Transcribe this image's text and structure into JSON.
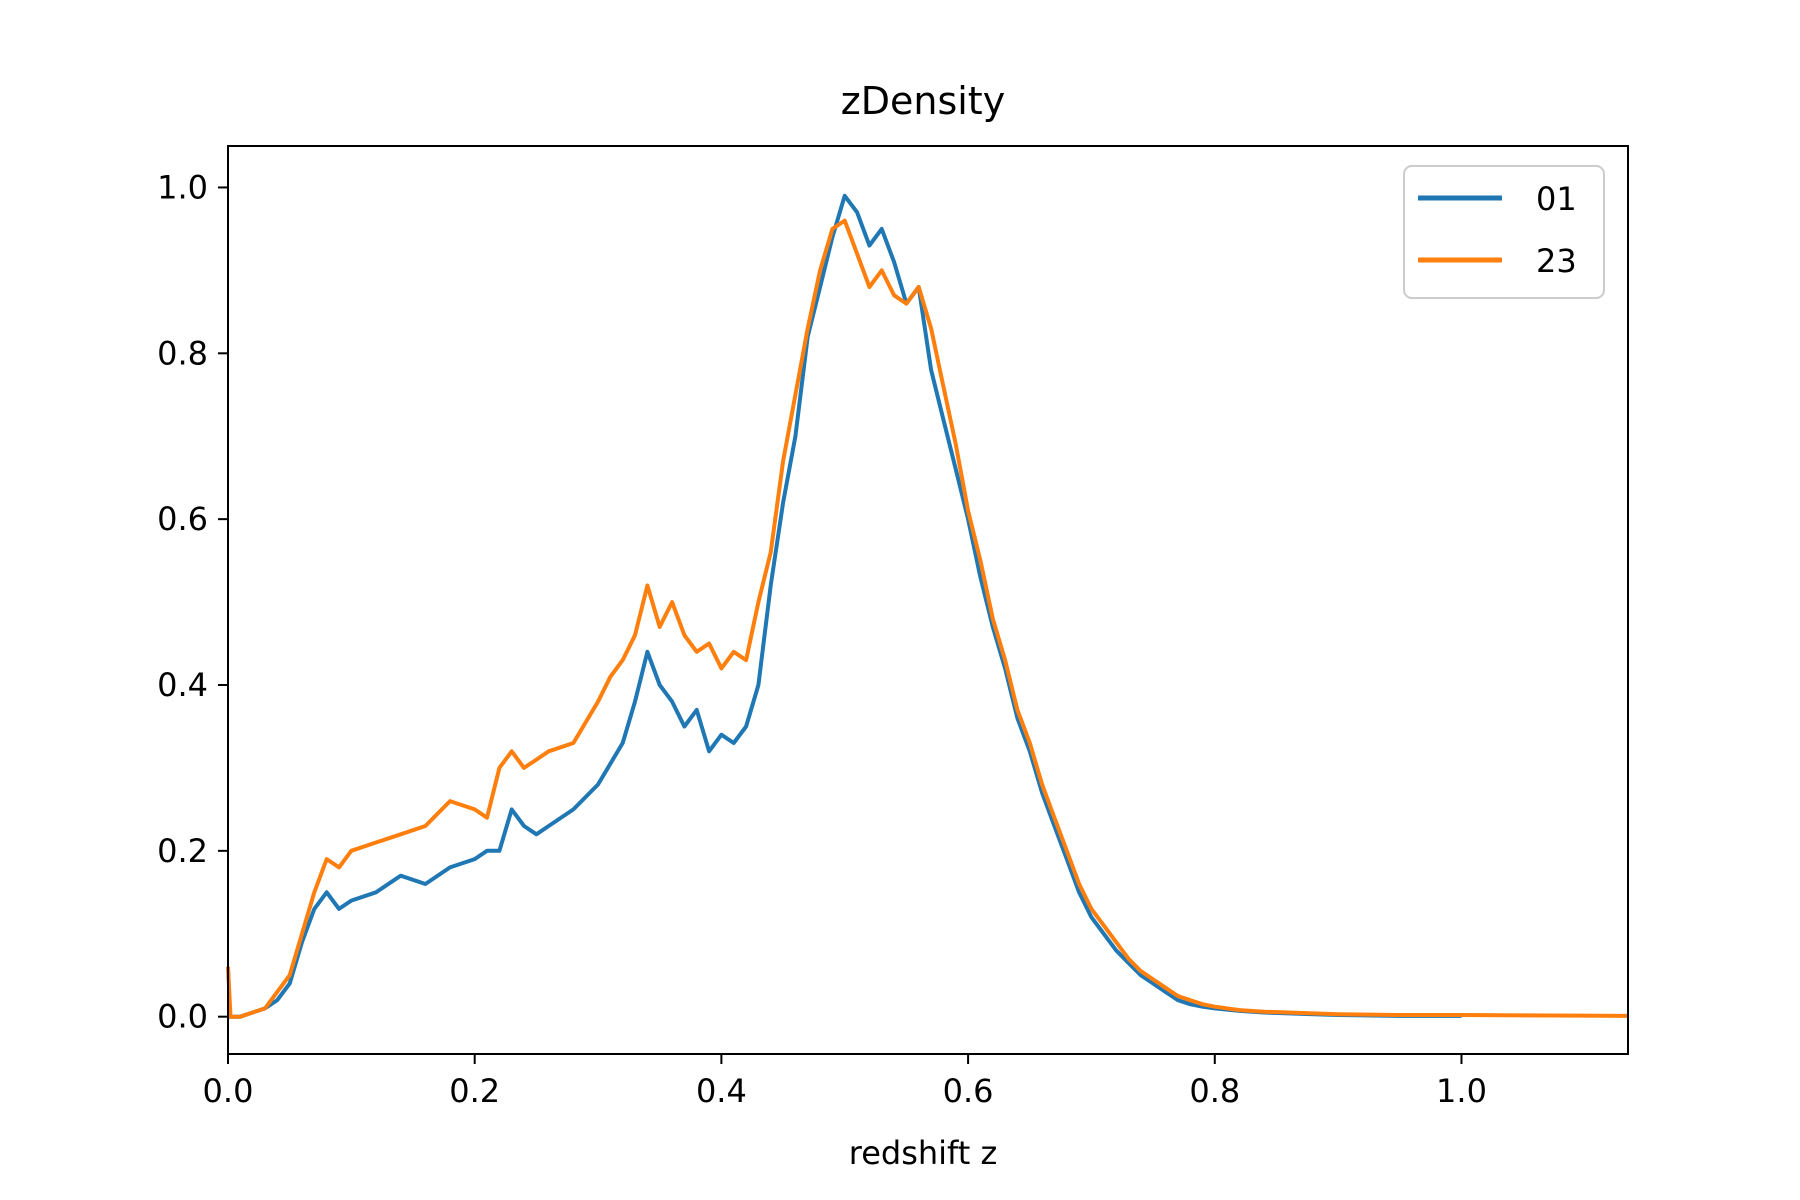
{
  "chart_data": {
    "type": "line",
    "title": "zDensity",
    "xlabel": "redshift z",
    "ylabel": "",
    "xlim": [
      0.0,
      1.135
    ],
    "ylim": [
      -0.045,
      1.05
    ],
    "x_ticks": [
      0.0,
      0.2,
      0.4,
      0.6,
      0.8,
      1.0
    ],
    "x_tick_labels": [
      "0.0",
      "0.2",
      "0.4",
      "0.6",
      "0.8",
      "1.0"
    ],
    "y_ticks": [
      0.0,
      0.2,
      0.4,
      0.6,
      0.8,
      1.0
    ],
    "y_tick_labels": [
      "0.0",
      "0.2",
      "0.4",
      "0.6",
      "0.8",
      "1.0"
    ],
    "grid": false,
    "legend_position": "top-right",
    "series": [
      {
        "name": "01",
        "color": "#1f77b4",
        "x": [
          0.0,
          0.01,
          0.02,
          0.03,
          0.04,
          0.05,
          0.06,
          0.07,
          0.08,
          0.09,
          0.1,
          0.12,
          0.14,
          0.16,
          0.18,
          0.2,
          0.21,
          0.22,
          0.23,
          0.24,
          0.25,
          0.26,
          0.28,
          0.3,
          0.32,
          0.33,
          0.34,
          0.35,
          0.36,
          0.37,
          0.38,
          0.39,
          0.4,
          0.41,
          0.42,
          0.43,
          0.44,
          0.45,
          0.46,
          0.47,
          0.48,
          0.49,
          0.5,
          0.51,
          0.52,
          0.53,
          0.54,
          0.55,
          0.56,
          0.57,
          0.58,
          0.59,
          0.6,
          0.61,
          0.62,
          0.63,
          0.64,
          0.65,
          0.66,
          0.67,
          0.68,
          0.69,
          0.7,
          0.71,
          0.72,
          0.73,
          0.74,
          0.75,
          0.76,
          0.77,
          0.78,
          0.79,
          0.8,
          0.82,
          0.84,
          0.86,
          0.88,
          0.9,
          0.95,
          1.0
        ],
        "y": [
          0.0,
          0.0,
          0.005,
          0.01,
          0.02,
          0.04,
          0.09,
          0.13,
          0.15,
          0.13,
          0.14,
          0.15,
          0.17,
          0.16,
          0.18,
          0.19,
          0.2,
          0.2,
          0.25,
          0.23,
          0.22,
          0.23,
          0.25,
          0.28,
          0.33,
          0.38,
          0.44,
          0.4,
          0.38,
          0.35,
          0.37,
          0.32,
          0.34,
          0.33,
          0.35,
          0.4,
          0.52,
          0.62,
          0.7,
          0.82,
          0.88,
          0.94,
          0.99,
          0.97,
          0.93,
          0.95,
          0.91,
          0.86,
          0.88,
          0.78,
          0.72,
          0.66,
          0.6,
          0.53,
          0.47,
          0.42,
          0.36,
          0.32,
          0.27,
          0.23,
          0.19,
          0.15,
          0.12,
          0.1,
          0.08,
          0.065,
          0.05,
          0.04,
          0.03,
          0.02,
          0.015,
          0.012,
          0.01,
          0.007,
          0.005,
          0.004,
          0.003,
          0.002,
          0.001,
          0.001
        ]
      },
      {
        "name": "23",
        "color": "#ff7f0e",
        "x": [
          0.0,
          0.002,
          0.01,
          0.02,
          0.03,
          0.04,
          0.05,
          0.06,
          0.07,
          0.08,
          0.09,
          0.1,
          0.12,
          0.14,
          0.16,
          0.18,
          0.2,
          0.21,
          0.22,
          0.23,
          0.24,
          0.25,
          0.26,
          0.28,
          0.3,
          0.31,
          0.32,
          0.33,
          0.34,
          0.35,
          0.36,
          0.37,
          0.38,
          0.39,
          0.4,
          0.41,
          0.42,
          0.43,
          0.44,
          0.45,
          0.46,
          0.47,
          0.48,
          0.49,
          0.5,
          0.51,
          0.52,
          0.53,
          0.54,
          0.55,
          0.56,
          0.57,
          0.58,
          0.59,
          0.6,
          0.61,
          0.62,
          0.63,
          0.64,
          0.65,
          0.66,
          0.67,
          0.68,
          0.69,
          0.7,
          0.71,
          0.72,
          0.73,
          0.74,
          0.75,
          0.76,
          0.77,
          0.78,
          0.79,
          0.8,
          0.82,
          0.84,
          0.86,
          0.88,
          0.9,
          0.95,
          1.0,
          1.135
        ],
        "y": [
          0.06,
          0.0,
          0.0,
          0.005,
          0.01,
          0.03,
          0.05,
          0.1,
          0.15,
          0.19,
          0.18,
          0.2,
          0.21,
          0.22,
          0.23,
          0.26,
          0.25,
          0.24,
          0.3,
          0.32,
          0.3,
          0.31,
          0.32,
          0.33,
          0.38,
          0.41,
          0.43,
          0.46,
          0.52,
          0.47,
          0.5,
          0.46,
          0.44,
          0.45,
          0.42,
          0.44,
          0.43,
          0.5,
          0.56,
          0.67,
          0.75,
          0.83,
          0.9,
          0.95,
          0.96,
          0.92,
          0.88,
          0.9,
          0.87,
          0.86,
          0.88,
          0.83,
          0.76,
          0.69,
          0.61,
          0.55,
          0.48,
          0.43,
          0.37,
          0.33,
          0.28,
          0.24,
          0.2,
          0.16,
          0.13,
          0.11,
          0.09,
          0.07,
          0.055,
          0.045,
          0.035,
          0.025,
          0.02,
          0.015,
          0.012,
          0.008,
          0.006,
          0.005,
          0.004,
          0.003,
          0.002,
          0.002,
          0.001
        ]
      }
    ]
  }
}
